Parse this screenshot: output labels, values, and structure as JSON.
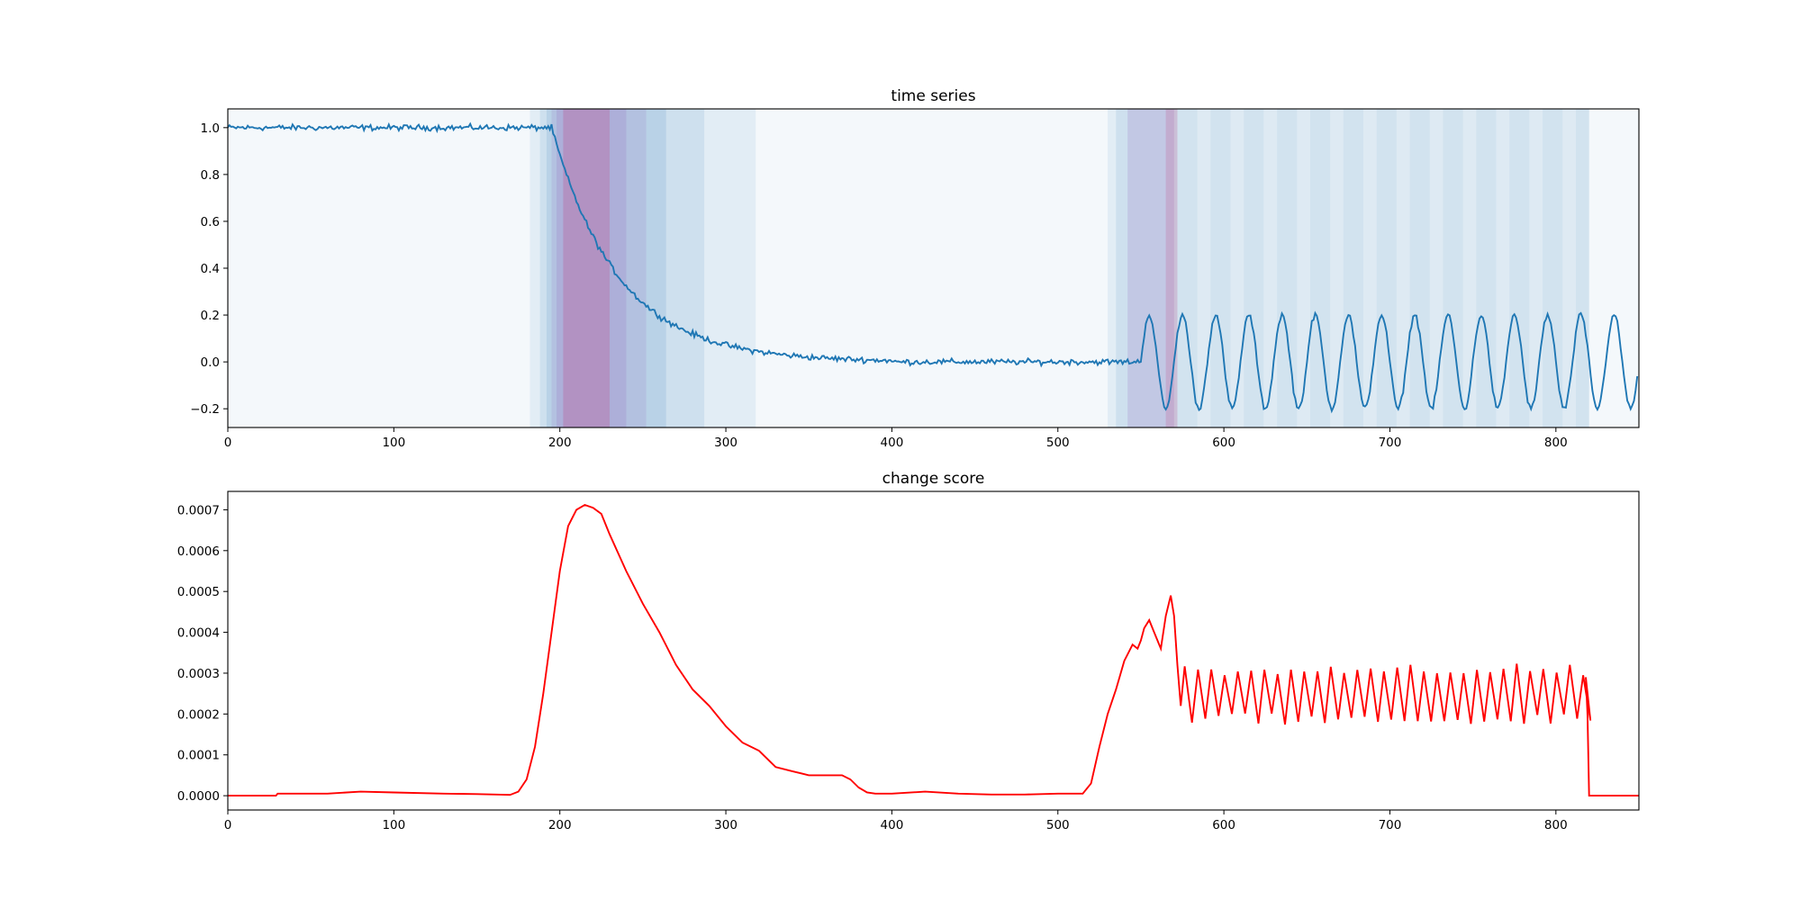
{
  "chart_data": [
    {
      "type": "line",
      "title": "time series",
      "xlabel": "",
      "ylabel": "",
      "xlim": [
        0,
        850
      ],
      "ylim": [
        -0.28,
        1.08
      ],
      "xticks": [
        "0",
        "100",
        "200",
        "300",
        "400",
        "500",
        "600",
        "700",
        "800"
      ],
      "yticks": [
        "−0.2",
        "0.0",
        "0.2",
        "0.4",
        "0.6",
        "0.8",
        "1.0"
      ],
      "grid": false,
      "line_color": "#1f77b4",
      "series": [
        {
          "segments": [
            {
              "from": 0,
              "to": 195,
              "function": "constant",
              "level": 1.0,
              "noise": 0.01
            },
            {
              "from": 195,
              "to": 400,
              "function": "exponential_decay",
              "start": 1.0,
              "end": 0.0,
              "time_constant": 40,
              "noise": 0.01
            },
            {
              "from": 400,
              "to": 550,
              "function": "constant",
              "level": 0.0,
              "noise": 0.01
            },
            {
              "from": 550,
              "to": 850,
              "function": "sine",
              "amplitude": 0.2,
              "period": 20,
              "noise": 0.01
            }
          ]
        }
      ],
      "shaded_spans": [
        {
          "x0": 0,
          "x1": 850,
          "color": "#1f77b4",
          "alpha": 0.05
        },
        {
          "x0": 182,
          "x1": 318,
          "color": "#1f77b4",
          "alpha": 0.08
        },
        {
          "x0": 188,
          "x1": 287,
          "color": "#1f77b4",
          "alpha": 0.1
        },
        {
          "x0": 192,
          "x1": 264,
          "color": "#1f77b4",
          "alpha": 0.12
        },
        {
          "x0": 195,
          "x1": 252,
          "color": "#9467bd",
          "alpha": 0.15
        },
        {
          "x0": 198,
          "x1": 240,
          "color": "#9467bd",
          "alpha": 0.2
        },
        {
          "x0": 202,
          "x1": 230,
          "color": "#c23b7f",
          "alpha": 0.25
        },
        {
          "x0": 530,
          "x1": 572,
          "color": "#1f77b4",
          "alpha": 0.08
        },
        {
          "x0": 535,
          "x1": 572,
          "color": "#1f77b4",
          "alpha": 0.1
        },
        {
          "x0": 542,
          "x1": 570,
          "color": "#9467bd",
          "alpha": 0.2
        },
        {
          "x0": 565,
          "x1": 572,
          "color": "#c23b7f",
          "alpha": 0.2
        },
        {
          "x0": 572,
          "x1": 820,
          "color": "#1f77b4",
          "alpha": 0.1
        },
        {
          "periodic": true,
          "x0": 572,
          "x1": 820,
          "period": 20,
          "width": 12,
          "color": "#1f77b4",
          "alpha": 0.06
        }
      ]
    },
    {
      "type": "line",
      "title": "change score",
      "xlabel": "",
      "ylabel": "",
      "xlim": [
        0,
        850
      ],
      "ylim": [
        -3.5e-05,
        0.000745
      ],
      "xticks": [
        "0",
        "100",
        "200",
        "300",
        "400",
        "500",
        "600",
        "700",
        "800"
      ],
      "yticks": [
        "0.0000",
        "0.0001",
        "0.0002",
        "0.0003",
        "0.0004",
        "0.0005",
        "0.0006",
        "0.0007"
      ],
      "grid": false,
      "line_color": "#ff0000",
      "series": [
        {
          "x": [
            0,
            29,
            30,
            60,
            80,
            100,
            130,
            150,
            170,
            175,
            180,
            185,
            190,
            195,
            200,
            205,
            210,
            215,
            220,
            225,
            230,
            240,
            250,
            260,
            270,
            280,
            290,
            300,
            310,
            320,
            330,
            340,
            350,
            360,
            370,
            375,
            380,
            385,
            390,
            400,
            420,
            440,
            460,
            480,
            500,
            515,
            520,
            525,
            530,
            535,
            540,
            545,
            548,
            550,
            552,
            555,
            558,
            562,
            565,
            568,
            570,
            572,
            574
          ],
          "y": [
            0,
            0,
            5e-06,
            5e-06,
            1e-05,
            8e-06,
            5e-06,
            4e-06,
            2e-06,
            1e-05,
            4e-05,
            0.00012,
            0.00025,
            0.0004,
            0.00055,
            0.00066,
            0.0007,
            0.000712,
            0.000705,
            0.00069,
            0.00064,
            0.00055,
            0.00047,
            0.0004,
            0.00032,
            0.00026,
            0.00022,
            0.00017,
            0.00013,
            0.00011,
            7e-05,
            6e-05,
            5e-05,
            5e-05,
            5e-05,
            4e-05,
            2e-05,
            8e-06,
            5e-06,
            5e-06,
            1e-05,
            5e-06,
            3e-06,
            3e-06,
            5e-06,
            5e-06,
            3e-05,
            0.00012,
            0.0002,
            0.00026,
            0.00033,
            0.00037,
            0.00036,
            0.00038,
            0.00041,
            0.00043,
            0.0004,
            0.00036,
            0.00044,
            0.00049,
            0.00044,
            0.00032,
            0.00022
          ]
        },
        {
          "oscillation": {
            "x0": 574,
            "x1": 818,
            "period": 8,
            "low": 0.000185,
            "high": 0.000305
          },
          "tail": {
            "x": [
              818,
              819,
              820,
              850
            ],
            "y": [
              0.00029,
              0.0002,
              0,
              0
            ]
          }
        }
      ]
    }
  ]
}
